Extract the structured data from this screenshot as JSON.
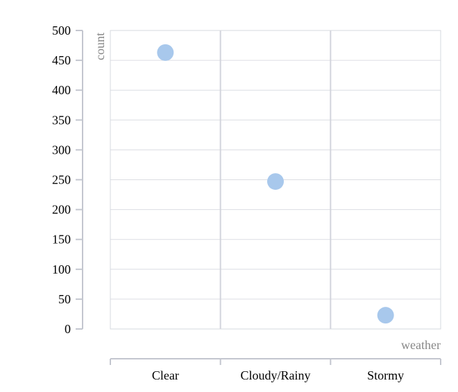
{
  "chart_data": {
    "type": "scatter",
    "title": "",
    "xlabel": "weather",
    "ylabel": "count",
    "categories": [
      "Clear",
      "Cloudy/Rainy",
      "Stormy"
    ],
    "values": [
      463,
      247,
      23
    ],
    "y_ticks": [
      "0",
      "50",
      "100",
      "150",
      "200",
      "250",
      "300",
      "350",
      "400",
      "450",
      "500"
    ],
    "ylim": [
      0,
      500
    ],
    "grid": true,
    "point_color": "#a8c8ec"
  }
}
